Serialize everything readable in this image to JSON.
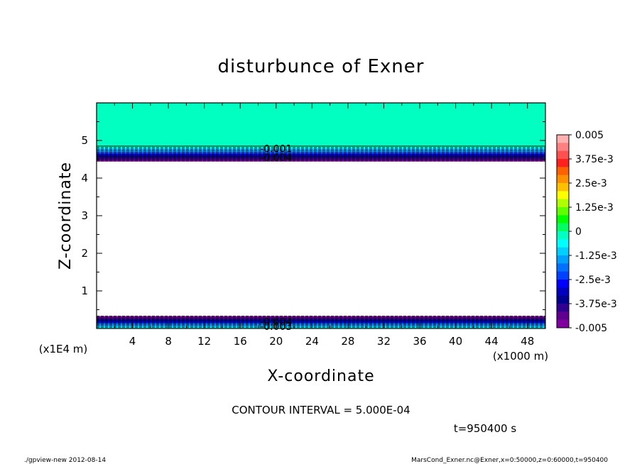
{
  "chart_data": {
    "type": "heatmap",
    "title": "disturbunce of Exner",
    "xlabel": "X-coordinate",
    "ylabel": "Z-coordinate",
    "x_unit_label": "(x1000 m)",
    "y_unit_label": "(x1E4 m)",
    "x_range": [
      0,
      50
    ],
    "y_range": [
      0,
      6
    ],
    "x_ticks": [
      4,
      8,
      12,
      16,
      20,
      24,
      28,
      32,
      36,
      40,
      44,
      48
    ],
    "y_ticks": [
      1,
      2,
      3,
      4,
      5
    ],
    "colorbar": {
      "range": [
        -0.005,
        0.005
      ],
      "tick_values": [
        0.005,
        0.00375,
        0.0025,
        0.00125,
        0,
        -0.00125,
        -0.0025,
        -0.00375,
        -0.005
      ],
      "tick_labels": [
        "0.005",
        "3.75e-3",
        "2.5e-3",
        "1.25e-3",
        "0",
        "-1.25e-3",
        "-2.5e-3",
        "-3.75e-3",
        "-0.005"
      ],
      "colors": [
        "#ffb0b0",
        "#ff8080",
        "#ff5050",
        "#ff2020",
        "#ff6000",
        "#ff9000",
        "#ffc000",
        "#ffff00",
        "#b0ff00",
        "#60ff00",
        "#00ff00",
        "#00ff60",
        "#00ffc0",
        "#00ffff",
        "#00d0ff",
        "#00a0ff",
        "#0070ff",
        "#0040ff",
        "#0000ff",
        "#0000c0",
        "#000090",
        "#300090",
        "#600090",
        "#8000a0"
      ]
    },
    "regions": [
      {
        "z_from": 4.85,
        "z_to": 6.0,
        "value": 0.0
      },
      {
        "z_from": 4.45,
        "z_to": 4.85,
        "value_from": -0.005,
        "value_to": 0.0
      },
      {
        "z_from": 0.0,
        "z_to": 0.33,
        "value_from": 0.0,
        "value_to": -0.005
      }
    ],
    "contour_labels": [
      {
        "x": 20,
        "z": 4.78,
        "text": "-0.001"
      },
      {
        "x": 20,
        "z": 4.55,
        "text": "-0.004"
      },
      {
        "x": 20,
        "z": 0.18,
        "text": "-0.004"
      },
      {
        "x": 20,
        "z": 0.06,
        "text": "-0.003"
      }
    ],
    "annotations": {
      "contour_interval": "CONTOUR INTERVAL = 5.000E-04",
      "time": "t=950400 s"
    }
  },
  "footer": {
    "left": "./gpview-new  2012-08-14",
    "right": "MarsCond_Exner.nc@Exner,x=0:50000,z=0:60000,t=950400"
  }
}
